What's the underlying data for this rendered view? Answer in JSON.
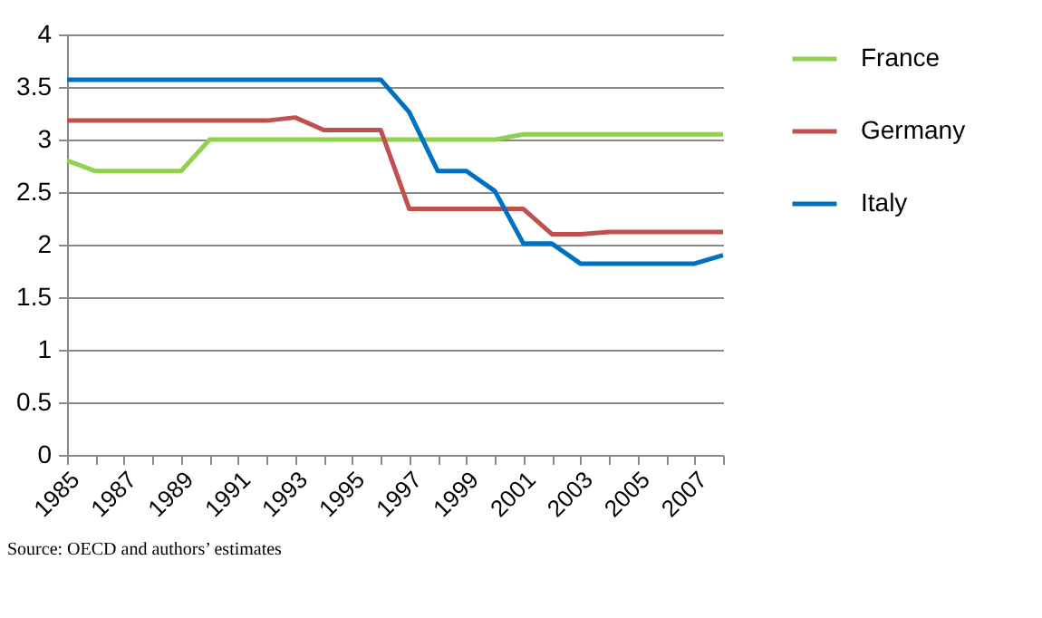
{
  "chart_data": {
    "type": "line",
    "categories": [
      "1985",
      null,
      "1987",
      null,
      "1989",
      null,
      "1991",
      null,
      "1993",
      null,
      "1995",
      null,
      "1997",
      null,
      "1999",
      null,
      "2001",
      null,
      "2003",
      null,
      "2005",
      null,
      "2007",
      null
    ],
    "series": [
      {
        "name": "France",
        "color": "#92d050",
        "values": [
          2.8,
          2.7,
          2.7,
          2.7,
          2.7,
          3,
          3,
          3,
          3,
          3,
          3,
          3,
          3,
          3,
          3,
          3,
          3.05,
          3.05,
          3.05,
          3.05,
          3.05,
          3.05,
          3.05,
          3.05
        ]
      },
      {
        "name": "Germany",
        "color": "#c0504d",
        "values": [
          3.18,
          3.18,
          3.18,
          3.18,
          3.18,
          3.18,
          3.18,
          3.18,
          3.21,
          3.09,
          3.09,
          3.09,
          2.34,
          2.34,
          2.34,
          2.34,
          2.34,
          2.1,
          2.1,
          2.12,
          2.12,
          2.12,
          2.12,
          2.12
        ]
      },
      {
        "name": "Italy",
        "color": "#0070c0",
        "values": [
          3.57,
          3.57,
          3.57,
          3.57,
          3.57,
          3.57,
          3.57,
          3.57,
          3.57,
          3.57,
          3.57,
          3.57,
          3.26,
          2.7,
          2.7,
          2.51,
          2.01,
          2.01,
          1.82,
          1.82,
          1.82,
          1.82,
          1.82,
          1.9
        ]
      }
    ],
    "ylim": [
      0,
      4
    ],
    "yticks": [
      0,
      0.5,
      1,
      1.5,
      2,
      2.5,
      3,
      3.5,
      4
    ],
    "grid": "y",
    "legend": "right",
    "marker": "none",
    "line_style": "solid",
    "annotations": [
      "Source: OECD and authors’ estimates"
    ]
  }
}
